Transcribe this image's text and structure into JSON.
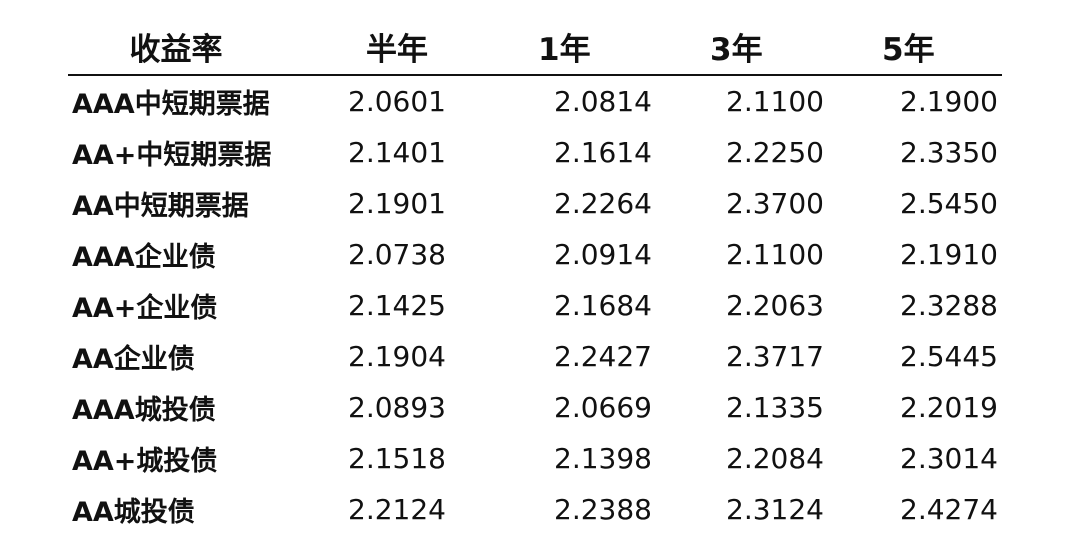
{
  "table": {
    "headers": [
      "收益率",
      "半年",
      "1年",
      "3年",
      "5年"
    ],
    "rows": [
      {
        "label": "AAA中短期票据",
        "values": [
          "2.0601",
          "2.0814",
          "2.1100",
          "2.1900"
        ]
      },
      {
        "label": "AA+中短期票据",
        "values": [
          "2.1401",
          "2.1614",
          "2.2250",
          "2.3350"
        ]
      },
      {
        "label": "AA中短期票据",
        "values": [
          "2.1901",
          "2.2264",
          "2.3700",
          "2.5450"
        ]
      },
      {
        "label": "AAA企业债",
        "values": [
          "2.0738",
          "2.0914",
          "2.1100",
          "2.1910"
        ]
      },
      {
        "label": "AA+企业债",
        "values": [
          "2.1425",
          "2.1684",
          "2.2063",
          "2.3288"
        ]
      },
      {
        "label": "AA企业债",
        "values": [
          "2.1904",
          "2.2427",
          "2.3717",
          "2.5445"
        ]
      },
      {
        "label": "AAA城投债",
        "values": [
          "2.0893",
          "2.0669",
          "2.1335",
          "2.2019"
        ]
      },
      {
        "label": "AA+城投债",
        "values": [
          "2.1518",
          "2.1398",
          "2.2084",
          "2.3014"
        ]
      },
      {
        "label": "AA城投债",
        "values": [
          "2.2124",
          "2.2388",
          "2.3124",
          "2.4274"
        ]
      }
    ]
  }
}
